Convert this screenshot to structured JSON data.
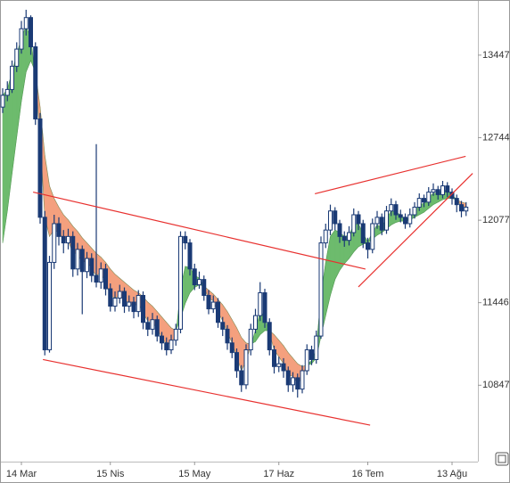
{
  "chart_data": {
    "type": "candlestick",
    "log_scale": true,
    "categories": [
      null,
      null,
      null,
      null,
      "14 Mar",
      null,
      null,
      null,
      null,
      null,
      null,
      null,
      null,
      null,
      null,
      null,
      null,
      null,
      null,
      null,
      null,
      null,
      null,
      "15 Nis",
      null,
      null,
      null,
      null,
      null,
      null,
      null,
      null,
      null,
      null,
      null,
      null,
      null,
      null,
      null,
      null,
      null,
      "15 May",
      null,
      null,
      null,
      null,
      null,
      null,
      null,
      null,
      null,
      null,
      null,
      null,
      null,
      null,
      null,
      null,
      null,
      "17 Haz",
      null,
      null,
      null,
      null,
      null,
      null,
      null,
      null,
      null,
      null,
      null,
      null,
      null,
      null,
      null,
      null,
      null,
      null,
      "16 Tem",
      null,
      null,
      null,
      null,
      null,
      null,
      null,
      null,
      null,
      null,
      null,
      null,
      null,
      null,
      null,
      null,
      null,
      "13 Ağu",
      null,
      null,
      null
    ],
    "open": [
      13000,
      13100,
      13150,
      13350,
      13500,
      13680,
      13780,
      13520,
      12900,
      12100,
      11100,
      11750,
      12050,
      11950,
      11900,
      11950,
      11700,
      11850,
      11680,
      11780,
      11650,
      11600,
      11700,
      11550,
      11420,
      11480,
      11530,
      11420,
      11450,
      11380,
      11500,
      11300,
      11250,
      11320,
      11200,
      11150,
      11100,
      11170,
      11250,
      11950,
      11900,
      11700,
      11580,
      11620,
      11500,
      11400,
      11450,
      11300,
      11250,
      11150,
      11080,
      10950,
      10850,
      11100,
      11250,
      11350,
      11520,
      11300,
      11100,
      10980,
      11000,
      10950,
      10850,
      10900,
      10820,
      10950,
      11100,
      11030,
      11200,
      11900,
      12000,
      12150,
      12050,
      11950,
      11920,
      11980,
      12120,
      12050,
      11900,
      11850,
      12050,
      12100,
      12000,
      12150,
      12200,
      12120,
      12100,
      12050,
      12120,
      12180,
      12250,
      12220,
      12300,
      12320,
      12280,
      12350,
      12300,
      12250,
      12200,
      12150
    ],
    "high": [
      13160,
      13220,
      13400,
      13560,
      13750,
      13850,
      13800,
      13560,
      12950,
      12150,
      11800,
      12120,
      12100,
      12000,
      12010,
      11990,
      11900,
      11880,
      11830,
      11820,
      12690,
      11750,
      11740,
      11590,
      11530,
      11580,
      11560,
      11500,
      11490,
      11540,
      11530,
      11340,
      11370,
      11350,
      11230,
      11190,
      11210,
      11290,
      11990,
      11990,
      11930,
      11740,
      11680,
      11650,
      11540,
      11500,
      11480,
      11340,
      11280,
      11190,
      11110,
      10990,
      11140,
      11290,
      11400,
      11600,
      11550,
      11330,
      11130,
      11050,
      11040,
      10980,
      10940,
      10930,
      10990,
      11140,
      11130,
      11240,
      11950,
      12050,
      12200,
      12180,
      12080,
      11990,
      12030,
      12170,
      12150,
      12080,
      11940,
      12090,
      12150,
      12130,
      12190,
      12250,
      12230,
      12160,
      12130,
      12170,
      12220,
      12290,
      12280,
      12340,
      12370,
      12350,
      12390,
      12380,
      12330,
      12280,
      12230,
      12220
    ],
    "low": [
      12950,
      13050,
      13120,
      13300,
      13460,
      13620,
      13450,
      12850,
      12050,
      11060,
      11080,
      11700,
      11880,
      11820,
      11850,
      11640,
      11650,
      11360,
      11630,
      11600,
      11560,
      11550,
      11500,
      11380,
      11380,
      11440,
      11370,
      11380,
      11330,
      11340,
      11250,
      11200,
      11210,
      11160,
      11100,
      11060,
      11070,
      11130,
      11220,
      11850,
      11650,
      11540,
      11550,
      11460,
      11360,
      11370,
      11260,
      11200,
      11100,
      11040,
      10900,
      10800,
      10820,
      11060,
      11220,
      11310,
      11260,
      11060,
      10930,
      10940,
      10900,
      10800,
      10800,
      10760,
      10790,
      10920,
      10990,
      11000,
      11180,
      11860,
      11960,
      12000,
      11900,
      11870,
      11880,
      11950,
      12000,
      11860,
      11780,
      11820,
      12010,
      11960,
      11970,
      12110,
      12080,
      12060,
      12010,
      12020,
      12090,
      12150,
      12180,
      12190,
      12270,
      12240,
      12250,
      12260,
      12200,
      12140,
      12100,
      12110
    ],
    "close": [
      13100,
      13150,
      13350,
      13500,
      13680,
      13780,
      13520,
      12900,
      12100,
      11100,
      11750,
      12050,
      11950,
      11900,
      11950,
      11700,
      11850,
      11680,
      11780,
      11650,
      11600,
      11700,
      11550,
      11420,
      11480,
      11530,
      11420,
      11450,
      11380,
      11500,
      11300,
      11250,
      11320,
      11200,
      11150,
      11100,
      11170,
      11250,
      11950,
      11900,
      11700,
      11580,
      11620,
      11500,
      11400,
      11450,
      11300,
      11250,
      11150,
      11080,
      10950,
      10850,
      11100,
      11250,
      11350,
      11520,
      11300,
      11100,
      10980,
      11000,
      10950,
      10850,
      10900,
      10820,
      10950,
      11100,
      11030,
      11200,
      11900,
      12000,
      12150,
      12050,
      11950,
      11920,
      11980,
      12120,
      12050,
      11900,
      11850,
      12050,
      12100,
      12000,
      12150,
      12200,
      12120,
      12100,
      12050,
      12120,
      12180,
      12250,
      12220,
      12300,
      12320,
      12280,
      12350,
      12300,
      12250,
      12200,
      12150,
      12180
    ],
    "candle_color": "#1a3a75",
    "ribbon": {
      "up_color": "#6dbb6d",
      "down_color": "#f4a07e",
      "fast": [
        13100,
        13150,
        13300,
        13450,
        13600,
        13700,
        13600,
        13250,
        12750,
        12100,
        11950,
        12000,
        11980,
        11930,
        11920,
        11820,
        11820,
        11750,
        11760,
        11700,
        11650,
        11670,
        11600,
        11500,
        11480,
        11500,
        11460,
        11450,
        11410,
        11450,
        11370,
        11310,
        11310,
        11250,
        11190,
        11140,
        11150,
        11200,
        11550,
        11720,
        11710,
        11650,
        11630,
        11560,
        11480,
        11460,
        11380,
        11310,
        11230,
        11150,
        11050,
        10950,
        11020,
        11130,
        11240,
        11380,
        11340,
        11220,
        11100,
        11050,
        11000,
        10920,
        10910,
        10860,
        10900,
        11000,
        11020,
        11110,
        11500,
        11750,
        11950,
        12000,
        11980,
        11950,
        11960,
        12040,
        12050,
        11970,
        11910,
        11980,
        12040,
        12020,
        12090,
        12150,
        12140,
        12120,
        12080,
        12100,
        12140,
        12200,
        12210,
        12260,
        12290,
        12290,
        12320,
        12310,
        12280,
        12240,
        12190,
        12180
      ],
      "slow": [
        11900,
        12150,
        12450,
        12750,
        13050,
        13300,
        13400,
        13300,
        13000,
        12600,
        12350,
        12250,
        12180,
        12120,
        12080,
        12030,
        11990,
        11940,
        11900,
        11860,
        11820,
        11790,
        11750,
        11700,
        11660,
        11630,
        11600,
        11570,
        11540,
        11520,
        11490,
        11450,
        11420,
        11380,
        11340,
        11300,
        11260,
        11240,
        11330,
        11440,
        11520,
        11560,
        11580,
        11570,
        11540,
        11510,
        11470,
        11430,
        11380,
        11320,
        11260,
        11190,
        11150,
        11140,
        11160,
        11210,
        11240,
        11240,
        11210,
        11170,
        11130,
        11080,
        11040,
        11000,
        10980,
        10990,
        11000,
        11040,
        11200,
        11350,
        11500,
        11620,
        11690,
        11740,
        11780,
        11830,
        11870,
        11890,
        11900,
        11930,
        11960,
        11980,
        12010,
        12040,
        12060,
        12070,
        12070,
        12080,
        12100,
        12120,
        12140,
        12170,
        12200,
        12220,
        12240,
        12250,
        12250,
        12240,
        12220,
        12210
      ]
    },
    "trend_lines": {
      "color": "#e8312f",
      "lines": [
        {
          "x": [
            6.5,
            77.5
          ],
          "y": [
            12300,
            11699
          ]
        },
        {
          "x": [
            8.6,
            78.5
          ],
          "y": [
            11030,
            10569
          ]
        },
        {
          "x": [
            66.7,
            98.9
          ],
          "y": [
            12287,
            12590
          ]
        },
        {
          "x": [
            76,
            100.4
          ],
          "y": [
            11564,
            12451
          ]
        }
      ]
    },
    "ylim": [
      10321,
      13898
    ],
    "yticks": [
      10847,
      11446,
      12077,
      12744,
      13447
    ]
  }
}
